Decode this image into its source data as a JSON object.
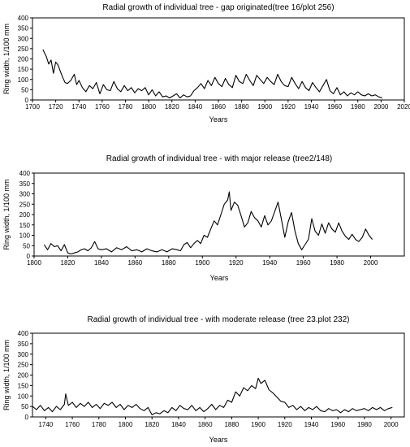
{
  "chart_data": [
    {
      "type": "line",
      "title": "Radial growth of individual tree - gap originated(tree 16/plot 256)",
      "xlabel": "Years",
      "ylabel": "Ring width, 1/100 mm",
      "xlim": [
        1700,
        2020
      ],
      "ylim": [
        0,
        400
      ],
      "xticks": [
        1700,
        1720,
        1740,
        1760,
        1780,
        1800,
        1820,
        1840,
        1860,
        1880,
        1900,
        1920,
        1940,
        1960,
        1980,
        2000,
        2020
      ],
      "yticks": [
        0,
        50,
        100,
        150,
        200,
        250,
        300,
        350,
        400
      ],
      "series": [
        {
          "x": [
            1709,
            1712,
            1714,
            1716,
            1718,
            1720,
            1722,
            1724,
            1726,
            1728,
            1730,
            1733,
            1736,
            1738,
            1740,
            1743,
            1746,
            1749,
            1752,
            1755,
            1758,
            1761,
            1764,
            1767,
            1770,
            1773,
            1776,
            1779,
            1782,
            1785,
            1788,
            1791,
            1794,
            1797,
            1800,
            1803,
            1806,
            1809,
            1812,
            1815,
            1818,
            1821,
            1824,
            1827,
            1830,
            1833,
            1836,
            1839,
            1842,
            1845,
            1848,
            1851,
            1854,
            1857,
            1860,
            1863,
            1866,
            1869,
            1872,
            1875,
            1878,
            1881,
            1884,
            1887,
            1890,
            1893,
            1896,
            1899,
            1902,
            1905,
            1908,
            1911,
            1914,
            1917,
            1920,
            1923,
            1926,
            1929,
            1932,
            1935,
            1938,
            1941,
            1944,
            1947,
            1950,
            1953,
            1956,
            1959,
            1962,
            1965,
            1968,
            1971,
            1974,
            1977,
            1980,
            1983,
            1986,
            1989,
            1992,
            1995,
            1998,
            2001
          ],
          "y": [
            245,
            210,
            175,
            195,
            130,
            185,
            170,
            140,
            110,
            85,
            80,
            95,
            125,
            75,
            95,
            60,
            40,
            70,
            55,
            85,
            30,
            75,
            50,
            45,
            90,
            55,
            40,
            70,
            45,
            60,
            35,
            55,
            45,
            60,
            25,
            50,
            20,
            40,
            15,
            20,
            10,
            20,
            30,
            10,
            25,
            15,
            20,
            45,
            60,
            80,
            55,
            95,
            70,
            110,
            80,
            65,
            105,
            75,
            60,
            120,
            90,
            80,
            125,
            95,
            70,
            120,
            100,
            80,
            110,
            90,
            75,
            125,
            90,
            70,
            65,
            110,
            80,
            55,
            90,
            60,
            45,
            85,
            60,
            40,
            70,
            100,
            45,
            30,
            60,
            25,
            40,
            20,
            35,
            25,
            40,
            25,
            20,
            30,
            20,
            25,
            15,
            10
          ]
        }
      ]
    },
    {
      "type": "line",
      "title": "Radial growth of individual tree - with major release (tree2/148)",
      "xlabel": "Years",
      "ylabel": "Ring width, 1/100 mm",
      "xlim": [
        1800,
        2020
      ],
      "ylim": [
        0,
        400
      ],
      "xticks": [
        1800,
        1820,
        1840,
        1860,
        1880,
        1900,
        1920,
        1940,
        1960,
        1980,
        2000
      ],
      "yticks": [
        0,
        50,
        100,
        150,
        200,
        250,
        300,
        350,
        400
      ],
      "series": [
        {
          "x": [
            1806,
            1808,
            1810,
            1812,
            1814,
            1816,
            1818,
            1820,
            1822,
            1824,
            1826,
            1828,
            1830,
            1832,
            1834,
            1836,
            1838,
            1840,
            1843,
            1846,
            1849,
            1852,
            1855,
            1858,
            1861,
            1864,
            1867,
            1870,
            1873,
            1876,
            1879,
            1882,
            1885,
            1887,
            1889,
            1891,
            1893,
            1895,
            1897,
            1899,
            1901,
            1903,
            1905,
            1907,
            1909,
            1911,
            1913,
            1915,
            1916,
            1917,
            1919,
            1921,
            1923,
            1925,
            1927,
            1929,
            1931,
            1933,
            1935,
            1937,
            1939,
            1941,
            1943,
            1945,
            1947,
            1949,
            1951,
            1953,
            1955,
            1957,
            1959,
            1961,
            1963,
            1965,
            1967,
            1969,
            1971,
            1973,
            1975,
            1977,
            1979,
            1981,
            1983,
            1985,
            1987,
            1989,
            1991,
            1993,
            1995,
            1997,
            1999,
            2001
          ],
          "y": [
            55,
            30,
            60,
            45,
            50,
            25,
            55,
            15,
            10,
            15,
            20,
            30,
            35,
            25,
            40,
            70,
            35,
            30,
            35,
            20,
            40,
            30,
            45,
            25,
            30,
            20,
            35,
            25,
            20,
            30,
            20,
            35,
            30,
            25,
            55,
            65,
            40,
            60,
            75,
            60,
            100,
            90,
            130,
            170,
            150,
            200,
            250,
            270,
            310,
            220,
            260,
            245,
            195,
            140,
            160,
            215,
            185,
            170,
            140,
            195,
            150,
            170,
            215,
            260,
            175,
            90,
            165,
            210,
            120,
            60,
            30,
            55,
            80,
            180,
            120,
            100,
            155,
            110,
            160,
            130,
            115,
            160,
            120,
            95,
            80,
            105,
            80,
            70,
            90,
            130,
            100,
            80
          ]
        }
      ]
    },
    {
      "type": "line",
      "title": "Radial growth of individual tree - with moderate release (tree 23.plot 232)",
      "xlabel": "Years",
      "ylabel": "Ring width, 1/100 mm",
      "xlim": [
        1730,
        2010
      ],
      "ylim": [
        0,
        400
      ],
      "xticks": [
        1740,
        1760,
        1780,
        1800,
        1820,
        1840,
        1860,
        1880,
        1900,
        1920,
        1940,
        1960,
        1980,
        2000
      ],
      "yticks": [
        0,
        50,
        100,
        150,
        200,
        250,
        300,
        350,
        400
      ],
      "series": [
        {
          "x": [
            1730,
            1733,
            1736,
            1739,
            1742,
            1745,
            1748,
            1751,
            1754,
            1755,
            1757,
            1760,
            1763,
            1766,
            1769,
            1772,
            1775,
            1778,
            1781,
            1784,
            1787,
            1790,
            1793,
            1796,
            1799,
            1802,
            1805,
            1808,
            1811,
            1814,
            1817,
            1820,
            1823,
            1826,
            1829,
            1832,
            1835,
            1838,
            1841,
            1844,
            1847,
            1850,
            1853,
            1856,
            1859,
            1862,
            1865,
            1868,
            1871,
            1874,
            1877,
            1880,
            1883,
            1886,
            1889,
            1892,
            1895,
            1898,
            1900,
            1902,
            1905,
            1908,
            1911,
            1914,
            1917,
            1920,
            1923,
            1926,
            1929,
            1932,
            1935,
            1938,
            1941,
            1944,
            1947,
            1950,
            1953,
            1956,
            1959,
            1962,
            1965,
            1968,
            1971,
            1974,
            1977,
            1980,
            1983,
            1986,
            1989,
            1992,
            1995,
            1998,
            2001
          ],
          "y": [
            50,
            35,
            55,
            30,
            45,
            25,
            50,
            35,
            60,
            110,
            55,
            70,
            45,
            65,
            50,
            70,
            45,
            60,
            40,
            65,
            55,
            70,
            45,
            60,
            35,
            55,
            45,
            60,
            40,
            30,
            45,
            10,
            20,
            15,
            30,
            20,
            45,
            30,
            55,
            40,
            35,
            55,
            30,
            45,
            25,
            40,
            60,
            35,
            55,
            45,
            80,
            70,
            120,
            100,
            140,
            125,
            150,
            135,
            185,
            160,
            175,
            130,
            115,
            95,
            75,
            70,
            45,
            55,
            35,
            50,
            30,
            45,
            35,
            50,
            30,
            25,
            40,
            30,
            35,
            20,
            35,
            25,
            40,
            30,
            35,
            40,
            30,
            45,
            35,
            45,
            30,
            40,
            45
          ]
        }
      ]
    }
  ]
}
